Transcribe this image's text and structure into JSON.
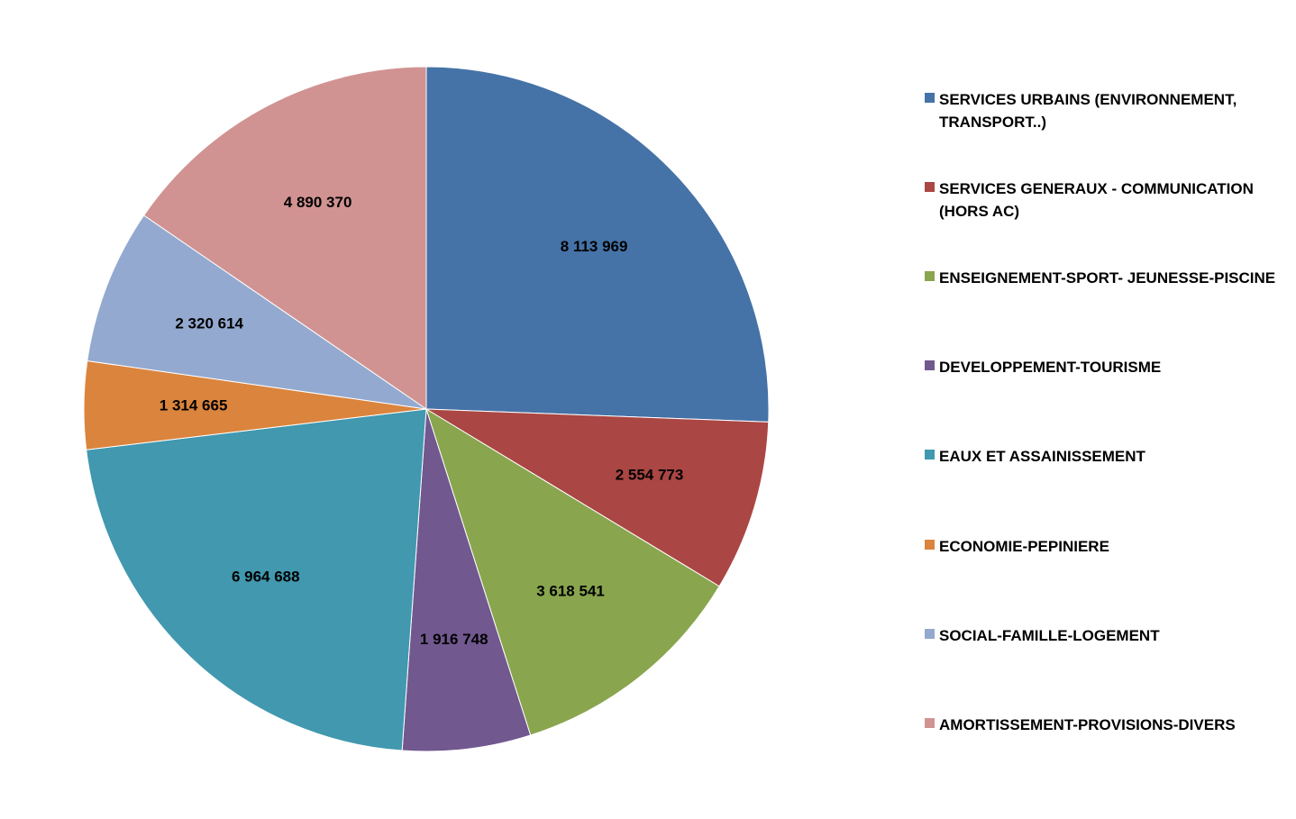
{
  "chart_data": {
    "type": "pie",
    "title": "",
    "start": "12 o'clock",
    "direction": "clockwise",
    "legend_position": "right",
    "slices": [
      {
        "label": "SERVICES URBAINS (ENVIRONNEMENT, TRANSPORT..)",
        "value": 8113969,
        "value_label": "8 113 969",
        "color": "#4572A7"
      },
      {
        "label": "SERVICES GENERAUX - COMMUNICATION (HORS AC)",
        "value": 2554773,
        "value_label": "2 554 773",
        "color": "#AA4643"
      },
      {
        "label": "ENSEIGNEMENT-SPORT- JEUNESSE-PISCINE",
        "value": 3618541,
        "value_label": "3 618 541",
        "color": "#89A54E"
      },
      {
        "label": "DEVELOPPEMENT-TOURISME",
        "value": 1916748,
        "value_label": "1 916 748",
        "color": "#71588F"
      },
      {
        "label": "EAUX ET ASSAINISSEMENT",
        "value": 6964688,
        "value_label": "6 964 688",
        "color": "#4198AF"
      },
      {
        "label": "ECONOMIE-PEPINIERE",
        "value": 1314665,
        "value_label": "1 314 665",
        "color": "#DB843D"
      },
      {
        "label": "SOCIAL-FAMILLE-LOGEMENT",
        "value": 2320614,
        "value_label": "2 320 614",
        "color": "#93A9CF"
      },
      {
        "label": "AMORTISSEMENT-PROVISIONS-DIVERS",
        "value": 4890370,
        "value_label": "4 890 370",
        "color": "#D19392"
      }
    ]
  }
}
